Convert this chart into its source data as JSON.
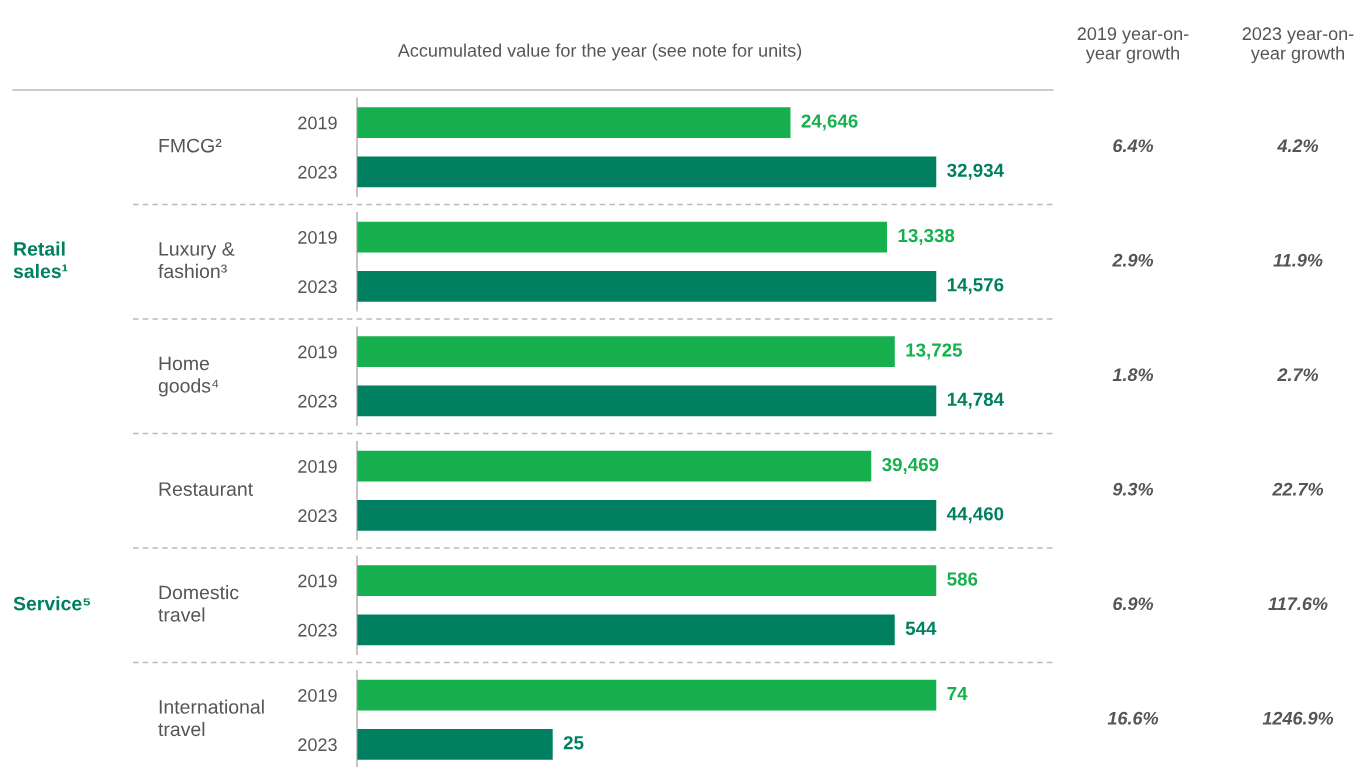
{
  "chart_data": [
    {
      "type": "bar",
      "orientation": "horizontal",
      "title": "FMCG²",
      "xlabel": "Accumulated value for the year (see note for units)",
      "categories": [
        "2019",
        "2023"
      ],
      "values": [
        24646,
        32934
      ],
      "value_labels": [
        "24,646",
        "32,934"
      ],
      "colors": [
        "#17b04f",
        "#008060"
      ],
      "annotations": [
        "2019 year-on-\nyear growth",
        "2023 year-on-\nyear growth",
        "6.4%",
        "4.2%"
      ]
    },
    {
      "type": "bar",
      "orientation": "horizontal",
      "title": "Luxury &\nfashion³",
      "ylabel": "Retail\nsales¹",
      "categories": [
        "2019",
        "2023"
      ],
      "values": [
        13338,
        14576
      ],
      "value_labels": [
        "13,338",
        "14,576"
      ],
      "colors": [
        "#17b04f",
        "#008060"
      ],
      "annotations": [
        "2.9%",
        "11.9%"
      ]
    },
    {
      "type": "bar",
      "orientation": "horizontal",
      "title": "Home\ngoods⁴",
      "categories": [
        "2019",
        "2023"
      ],
      "values": [
        13725,
        14784
      ],
      "value_labels": [
        "13,725",
        "14,784"
      ],
      "colors": [
        "#17b04f",
        "#008060"
      ],
      "annotations": [
        "1.8%",
        "2.7%"
      ]
    },
    {
      "type": "bar",
      "orientation": "horizontal",
      "title": "Restaurant",
      "categories": [
        "2019",
        "2023"
      ],
      "values": [
        39469,
        44460
      ],
      "value_labels": [
        "39,469",
        "44,460"
      ],
      "colors": [
        "#17b04f",
        "#008060"
      ],
      "annotations": [
        "9.3%",
        "22.7%"
      ]
    },
    {
      "type": "bar",
      "orientation": "horizontal",
      "title": "Domestic\ntravel",
      "ylabel": "Service⁵",
      "categories": [
        "2019",
        "2023"
      ],
      "values": [
        586,
        544
      ],
      "value_labels": [
        "586",
        "544"
      ],
      "colors": [
        "#17b04f",
        "#008060"
      ],
      "annotations": [
        "6.9%",
        "117.6%"
      ]
    },
    {
      "type": "bar",
      "orientation": "horizontal",
      "title": "International\ntravel",
      "categories": [
        "2019",
        "2023"
      ],
      "values": [
        74,
        25
      ],
      "value_labels": [
        "74",
        "25"
      ],
      "colors": [
        "#17b04f",
        "#008060"
      ],
      "annotations": [
        "16.6%",
        "1246.9%"
      ]
    }
  ]
}
